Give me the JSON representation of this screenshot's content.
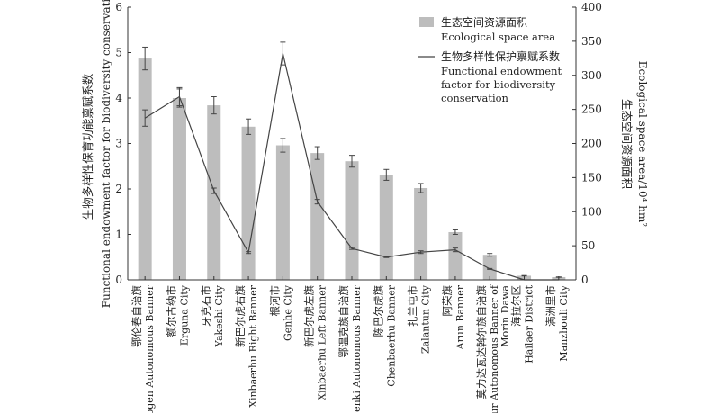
{
  "chart_data": {
    "type": "bar+line",
    "categories": [
      {
        "zh": "鄂伦春自治旗",
        "en": [
          "Orogen Autonomous Banner"
        ]
      },
      {
        "zh": "额尔古纳市",
        "en": [
          "Erguna City"
        ]
      },
      {
        "zh": "牙克石市",
        "en": [
          "Yakeshi City"
        ]
      },
      {
        "zh": "新巴尔虎右旗",
        "en": [
          "Xinbaerhu Right Banner"
        ]
      },
      {
        "zh": "根河市",
        "en": [
          "Genhe City"
        ]
      },
      {
        "zh": "新巴尔虎左旗",
        "en": [
          "Xinbaerhu Left Banner"
        ]
      },
      {
        "zh": "鄂温克族自治旗",
        "en": [
          "Ewenki Autonomous Banner"
        ]
      },
      {
        "zh": "陈巴尔虎旗",
        "en": [
          "Chenbaerhu Banner"
        ]
      },
      {
        "zh": "扎兰屯市",
        "en": [
          "Zalantun City"
        ]
      },
      {
        "zh": "阿荣旗",
        "en": [
          "Arun Banner"
        ]
      },
      {
        "zh": "莫力达瓦达斡尔族自治旗",
        "en": [
          "Daur Autonomous Banner of",
          "Morin Dawa"
        ]
      },
      {
        "zh": "海拉尔区",
        "en": [
          "Hailaer District"
        ]
      },
      {
        "zh": "满洲里市",
        "en": [
          "Manzhouli City"
        ]
      }
    ],
    "series": [
      {
        "name_zh": "生态空间资源面积",
        "name_en": [
          "Ecological space area"
        ],
        "kind": "bar",
        "axis": "right",
        "color": "#bdbdbd",
        "values": [
          4.87,
          4.0,
          3.84,
          3.37,
          2.96,
          2.79,
          2.61,
          2.31,
          2.02,
          1.05,
          0.55,
          0.09,
          0.06
        ],
        "errors": [
          0.25,
          0.2,
          0.19,
          0.17,
          0.15,
          0.14,
          0.13,
          0.12,
          0.1,
          0.05,
          0.03,
          0.005,
          0.004
        ]
      },
      {
        "name_zh": "生物多样性保护禀赋系数",
        "name_en": [
          "Functional endowment",
          "factor for biodiversity",
          "conservation"
        ],
        "kind": "line",
        "axis": "left",
        "color": "#444444",
        "values": [
          3.56,
          4.03,
          1.96,
          0.6,
          4.98,
          1.72,
          0.69,
          0.5,
          0.61,
          0.66,
          0.24,
          0.0,
          0.0
        ],
        "errors": [
          0.18,
          0.2,
          0.06,
          0.02,
          0.25,
          0.05,
          0.02,
          0.01,
          0.03,
          0.04,
          0.01,
          0.0,
          0.0
        ]
      }
    ],
    "y_left": {
      "label_zh": "生物多样性保育功能禀赋系数",
      "label_en": "Functional endowment factor for biodiversity conservation",
      "lim": [
        0,
        6
      ],
      "ticks": [
        0,
        1,
        2,
        3,
        4,
        5,
        6
      ]
    },
    "y_right": {
      "label_zh": "生态空间资源面积",
      "label_en": "Ecological space area/10⁴ hm²",
      "lim": [
        0,
        400
      ],
      "ticks": [
        0,
        50,
        100,
        150,
        200,
        250,
        300,
        350,
        400
      ]
    },
    "legend_position": "top-right",
    "grid": false
  }
}
